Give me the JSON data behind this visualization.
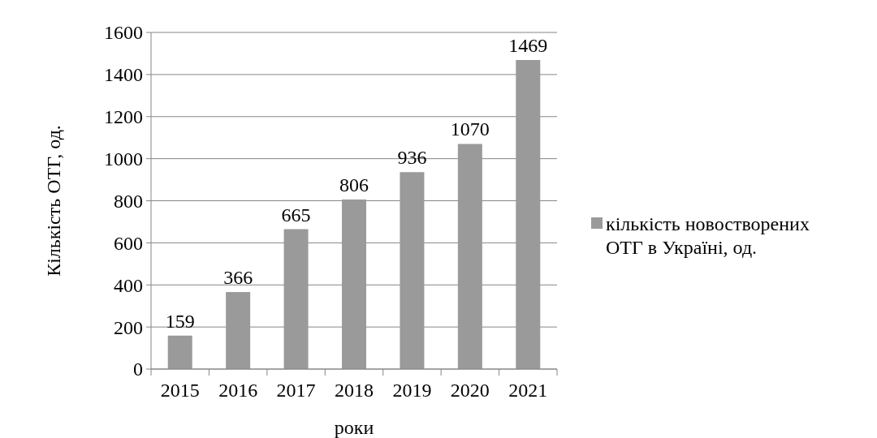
{
  "chart_data": {
    "type": "bar",
    "xlabel": "роки",
    "ylabel": "Кількість ОТГ, од.",
    "categories": [
      "2015",
      "2016",
      "2017",
      "2018",
      "2019",
      "2020",
      "2021"
    ],
    "series": [
      {
        "name": "кількість новостворених ОТГ в Україні, од.",
        "color": "#9a9a9a",
        "values": [
          159,
          366,
          665,
          806,
          936,
          1070,
          1469
        ]
      }
    ],
    "ylim": [
      0,
      1600
    ],
    "yticks": [
      0,
      200,
      400,
      600,
      800,
      1000,
      1200,
      1400,
      1600
    ],
    "grid": "y",
    "legend": "right",
    "data_labels": true
  }
}
